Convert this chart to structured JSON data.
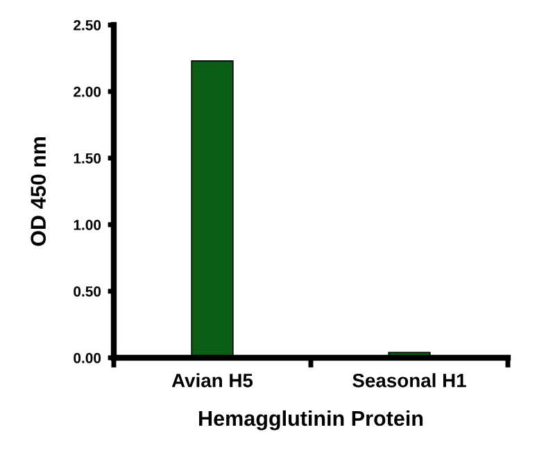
{
  "chart_data": {
    "type": "bar",
    "xlabel": "Hemagglutinin Protein",
    "ylabel": "OD 450 nm",
    "categories": [
      "Avian H5",
      "Seasonal H1"
    ],
    "series": [
      {
        "color": "#0b5e16",
        "values": [
          2.23,
          0.04
        ]
      }
    ],
    "ylim": [
      0,
      2.5
    ],
    "yticks": [
      {
        "value": 0,
        "label": "0.00"
      },
      {
        "value": 0.5,
        "label": "0.50"
      },
      {
        "value": 1.0,
        "label": "1.00"
      },
      {
        "value": 1.5,
        "label": "1.50"
      },
      {
        "value": 2.0,
        "label": "2.00"
      },
      {
        "value": 2.5,
        "label": "2.50"
      }
    ],
    "grid": false,
    "legend": false
  }
}
